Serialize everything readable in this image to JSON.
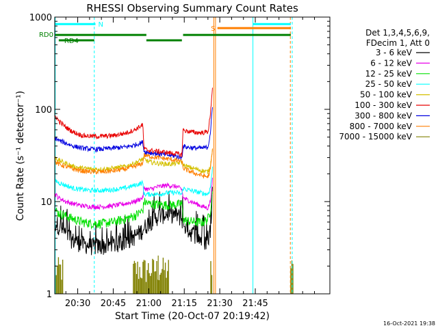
{
  "chart_data": {
    "type": "line",
    "title": "RHESSI Observing Summary Count Rates",
    "xlabel": "Start Time (20-Oct-07 20:19:42)",
    "ylabel": "Count Rate (s⁻¹ detector⁻¹)",
    "yscale": "log",
    "xlim_minutes": [
      20.3,
      136.5
    ],
    "ylim": [
      1,
      1000
    ],
    "x_ticks": [
      {
        "t": 30,
        "label": "20:30"
      },
      {
        "t": 45,
        "label": "20:45"
      },
      {
        "t": 60,
        "label": "21:00"
      },
      {
        "t": 75,
        "label": "21:15"
      },
      {
        "t": 90,
        "label": "21:30"
      },
      {
        "t": 105,
        "label": "21:45"
      }
    ],
    "y_ticks": [
      {
        "v": 1,
        "label": "1"
      },
      {
        "v": 10,
        "label": "10"
      },
      {
        "v": 100,
        "label": "100"
      },
      {
        "v": 1000,
        "label": "1000"
      }
    ],
    "legend": {
      "header": [
        "Det 1,3,4,5,6,9,",
        "FDecim 1, Att 0"
      ],
      "placement": "right"
    },
    "series": [
      {
        "name": "3 - 6 keV",
        "color": "#000000",
        "x": [
          20.5,
          22,
          25,
          28,
          32,
          36,
          40,
          45,
          50,
          54,
          57.5,
          60,
          64,
          68,
          72,
          74,
          76,
          80,
          83,
          85,
          86,
          87
        ],
        "values": [
          6,
          5.5,
          4.5,
          3.8,
          3.5,
          3.3,
          3.3,
          3.4,
          3.7,
          4.2,
          5,
          6,
          7,
          7.5,
          7.2,
          6.5,
          5,
          4.3,
          3.8,
          3.6,
          5,
          12
        ]
      },
      {
        "name": "6 - 12 keV",
        "color": "#e800e8",
        "x": [
          20.5,
          22,
          25,
          28,
          32,
          36,
          40,
          45,
          50,
          54,
          57.5,
          58,
          60,
          64,
          68,
          72,
          74,
          74.5,
          76,
          80,
          83,
          85,
          86,
          87
        ],
        "values": [
          12,
          11,
          10,
          9.5,
          9,
          8.8,
          8.8,
          9,
          9.5,
          10,
          11,
          14,
          13.5,
          14.5,
          15,
          14.5,
          13.5,
          11,
          10.5,
          9.5,
          8.8,
          8.5,
          10,
          18
        ]
      },
      {
        "name": "12 - 25 keV",
        "color": "#00e000",
        "x": [
          20.5,
          22,
          25,
          28,
          32,
          36,
          40,
          45,
          50,
          54,
          57.5,
          58,
          60,
          64,
          68,
          72,
          74,
          74.5,
          76,
          80,
          83,
          85,
          86,
          87
        ],
        "values": [
          8,
          7.5,
          7,
          6.5,
          6,
          5.8,
          5.8,
          6,
          6.5,
          7,
          8,
          10,
          9.5,
          9.3,
          9.2,
          9.3,
          9.5,
          6.5,
          6.2,
          6,
          6,
          6.5,
          8,
          14
        ]
      },
      {
        "name": "25 - 50 keV",
        "color": "#00ffff",
        "x": [
          20.5,
          22,
          25,
          28,
          32,
          36,
          40,
          45,
          50,
          54,
          57.5,
          58,
          60,
          64,
          68,
          72,
          74,
          74.5,
          76,
          80,
          83,
          85,
          86,
          87
        ],
        "values": [
          17,
          16,
          15,
          14,
          13.5,
          13.2,
          13.2,
          13.5,
          14,
          15,
          16,
          12,
          12,
          12,
          12.5,
          12.5,
          12,
          14,
          13.5,
          12.8,
          12.3,
          12,
          14,
          24
        ]
      },
      {
        "name": "50 - 100 keV",
        "color": "#d4c000",
        "x": [
          20.5,
          22,
          25,
          28,
          32,
          36,
          40,
          45,
          50,
          54,
          57.5,
          58,
          60,
          64,
          68,
          72,
          74,
          74.5,
          76,
          80,
          83,
          85,
          86,
          87
        ],
        "values": [
          30,
          28,
          26,
          24,
          23,
          22.5,
          22.5,
          23,
          24,
          26,
          29,
          29,
          27,
          26,
          25.5,
          26,
          27,
          25,
          24,
          22.5,
          21.5,
          21,
          24,
          40
        ]
      },
      {
        "name": "100 - 300 keV",
        "color": "#e80000",
        "x": [
          20.5,
          22,
          25,
          28,
          32,
          36,
          40,
          45,
          50,
          54,
          57.5,
          58,
          60,
          64,
          68,
          72,
          74,
          74.5,
          76,
          80,
          83,
          85,
          86,
          87
        ],
        "values": [
          85,
          75,
          64,
          57,
          52,
          51,
          51,
          52,
          55,
          60,
          68,
          37,
          36,
          35,
          34,
          33,
          32,
          60,
          58,
          56,
          56,
          57,
          85,
          190
        ]
      },
      {
        "name": "300 - 800 keV",
        "color": "#0000e0",
        "x": [
          20.5,
          22,
          25,
          28,
          32,
          36,
          40,
          45,
          50,
          54,
          57.5,
          58,
          60,
          64,
          68,
          72,
          74,
          74.5,
          76,
          80,
          83,
          85,
          86,
          87
        ],
        "values": [
          49,
          46,
          43,
          40,
          38,
          37,
          37,
          38,
          39,
          41,
          44,
          35,
          34,
          33,
          32,
          31,
          30,
          40,
          39,
          38,
          38,
          39,
          55,
          110
        ]
      },
      {
        "name": "800 - 7000 keV",
        "color": "#ff7f00",
        "x": [
          20.5,
          22,
          25,
          28,
          32,
          36,
          40,
          45,
          50,
          54,
          57.5,
          58,
          60,
          64,
          68,
          72,
          74,
          74.5,
          76,
          80,
          83,
          85,
          86,
          87
        ],
        "values": [
          27,
          25.5,
          24,
          22.5,
          21.5,
          21,
          21,
          21.5,
          22.5,
          24,
          26,
          32,
          31,
          30,
          29,
          28,
          27.5,
          23,
          22,
          20,
          19,
          18.5,
          22,
          38
        ]
      },
      {
        "name": "7000 - 15000 keV",
        "color": "#808000",
        "x": [],
        "values": []
      }
    ],
    "status_bars": [
      {
        "label": "N",
        "color": "#00ffff",
        "segments": [
          [
            20.5,
            37.5
          ],
          [
            104,
            120
          ]
        ],
        "level": 840
      },
      {
        "label": "S",
        "color": "#ff7f00",
        "segments": [
          [
            89,
            120
          ]
        ],
        "level": 760
      },
      {
        "label": "RD0",
        "color": "#008000",
        "segments": [
          [
            20.5,
            59
          ],
          [
            74.5,
            120
          ]
        ],
        "level": 640
      },
      {
        "label": "RD4",
        "color": "#008000",
        "segments": [
          [
            22,
            37
          ],
          [
            59,
            74
          ]
        ],
        "level": 560
      }
    ],
    "vlines": [
      {
        "t": 20.5,
        "color": "#00ffff",
        "style": "solid"
      },
      {
        "t": 37,
        "color": "#00ffff",
        "style": "dashed"
      },
      {
        "t": 87.5,
        "color": "#ff7f00",
        "style": "solid"
      },
      {
        "t": 88.2,
        "color": "#ff7f00",
        "style": "solid"
      },
      {
        "t": 104,
        "color": "#00ffff",
        "style": "solid"
      },
      {
        "t": 119.8,
        "color": "#ff7f00",
        "style": "dashed"
      },
      {
        "t": 120.6,
        "color": "#00ffff",
        "style": "dashed"
      }
    ],
    "olive_blocks": [
      [
        20.5,
        24
      ],
      [
        53.5,
        68.5
      ],
      [
        86.2,
        86.8
      ],
      [
        120,
        121
      ]
    ],
    "footer_stamp": "16-Oct-2021 19:38"
  }
}
